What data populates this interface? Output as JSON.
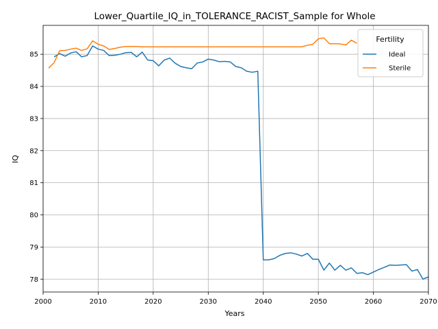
{
  "chart_data": {
    "type": "line",
    "title": "Lower_Quartile_IQ_in_TOLERANCE_RACIST_Sample for Whole",
    "xlabel": "Years",
    "ylabel": "IQ",
    "xlim": [
      2000,
      2070
    ],
    "ylim": [
      77.6,
      85.9
    ],
    "xticks": [
      2000,
      2010,
      2020,
      2030,
      2040,
      2050,
      2060,
      2070
    ],
    "yticks": [
      78,
      79,
      80,
      81,
      82,
      83,
      84,
      85
    ],
    "grid": true,
    "legend": {
      "title": "Fertility",
      "placement": "top-right"
    },
    "series": [
      {
        "name": "Ideal",
        "color": "#1f77b4",
        "x": [
          2002,
          2003,
          2004,
          2005,
          2006,
          2007,
          2008,
          2009,
          2010,
          2011,
          2012,
          2013,
          2014,
          2015,
          2016,
          2017,
          2018,
          2019,
          2020,
          2021,
          2022,
          2023,
          2024,
          2025,
          2026,
          2027,
          2028,
          2029,
          2030,
          2031,
          2032,
          2033,
          2034,
          2035,
          2036,
          2037,
          2038,
          2039,
          2040,
          2041,
          2042,
          2043,
          2044,
          2045,
          2046,
          2047,
          2048,
          2049,
          2050,
          2051,
          2052,
          2053,
          2054,
          2055,
          2056,
          2057,
          2058,
          2059,
          2060,
          2061,
          2062,
          2063,
          2064,
          2065,
          2066,
          2067,
          2068,
          2069,
          2070
        ],
        "y": [
          84.92,
          85.02,
          84.94,
          85.04,
          85.08,
          84.92,
          84.96,
          85.26,
          85.16,
          85.12,
          84.96,
          84.97,
          85.0,
          85.05,
          85.06,
          84.92,
          85.07,
          84.82,
          84.8,
          84.64,
          84.82,
          84.88,
          84.72,
          84.62,
          84.58,
          84.55,
          84.73,
          84.76,
          84.85,
          84.82,
          84.77,
          84.78,
          84.76,
          84.62,
          84.58,
          84.47,
          84.44,
          84.47,
          78.6,
          78.6,
          78.64,
          78.74,
          78.8,
          78.82,
          78.78,
          78.72,
          78.8,
          78.62,
          78.62,
          78.28,
          78.5,
          78.28,
          78.43,
          78.28,
          78.35,
          78.18,
          78.2,
          78.14,
          78.22,
          78.3,
          78.37,
          78.44,
          78.43,
          78.44,
          78.45,
          78.25,
          78.3,
          78.0,
          78.07
        ]
      },
      {
        "name": "Sterile",
        "color": "#ff7f0e",
        "x": [
          2001,
          2002,
          2003,
          2004,
          2005,
          2006,
          2007,
          2008,
          2009,
          2010,
          2011,
          2012,
          2013,
          2014,
          2015,
          2016,
          2017,
          2018,
          2019,
          2020,
          2021,
          2022,
          2023,
          2024,
          2025,
          2026,
          2027,
          2028,
          2029,
          2030,
          2031,
          2032,
          2033,
          2034,
          2035,
          2036,
          2037,
          2038,
          2039,
          2040,
          2041,
          2042,
          2043,
          2044,
          2045,
          2046,
          2047,
          2048,
          2049,
          2050,
          2051,
          2052,
          2053,
          2054,
          2055,
          2056,
          2057
        ],
        "y": [
          84.57,
          84.74,
          85.11,
          85.12,
          85.16,
          85.19,
          85.12,
          85.17,
          85.42,
          85.31,
          85.26,
          85.15,
          85.18,
          85.22,
          85.24,
          85.24,
          85.24,
          85.23,
          85.23,
          85.23,
          85.23,
          85.23,
          85.23,
          85.23,
          85.23,
          85.23,
          85.23,
          85.23,
          85.23,
          85.23,
          85.23,
          85.23,
          85.23,
          85.23,
          85.23,
          85.23,
          85.23,
          85.23,
          85.23,
          85.23,
          85.23,
          85.23,
          85.23,
          85.23,
          85.23,
          85.23,
          85.23,
          85.28,
          85.31,
          85.48,
          85.51,
          85.33,
          85.33,
          85.32,
          85.29,
          85.44,
          85.34
        ]
      }
    ]
  }
}
